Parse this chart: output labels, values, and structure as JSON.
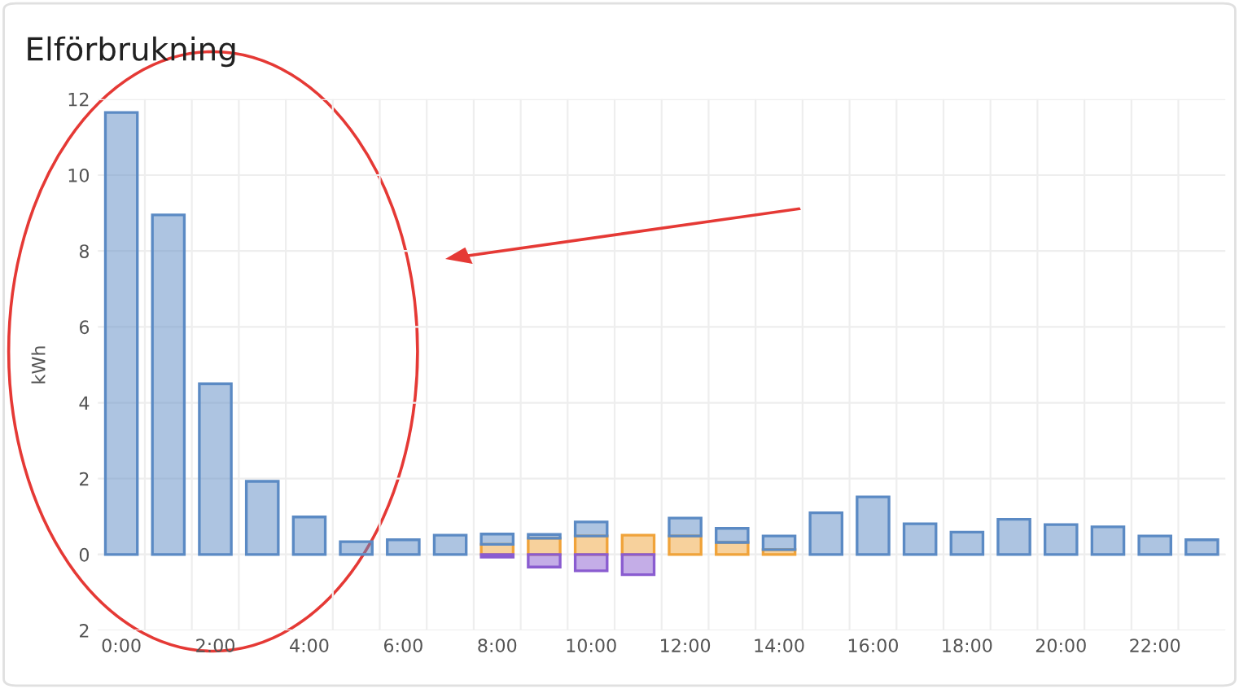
{
  "chart_data": {
    "type": "bar",
    "title": "Elförbrukning",
    "ylabel": "kWh",
    "stacked": true,
    "grid": true,
    "legend": false,
    "categories": [
      "0:00",
      null,
      "2:00",
      null,
      "4:00",
      null,
      "6:00",
      null,
      "8:00",
      null,
      "10:00",
      null,
      "12:00",
      null,
      "14:00",
      null,
      "16:00",
      null,
      "18:00",
      null,
      "20:00",
      null,
      "22:00",
      null
    ],
    "series": [
      {
        "color": "#f0a33a",
        "values": [
          null,
          null,
          null,
          null,
          null,
          null,
          null,
          null,
          0.27,
          0.43,
          0.49,
          0.51,
          0.49,
          0.32,
          0.13,
          null,
          null,
          null,
          null,
          null,
          null,
          null,
          null,
          null
        ]
      },
      {
        "color": "#5b8ac4",
        "values": [
          11.65,
          8.95,
          4.5,
          1.93,
          0.99,
          0.34,
          0.39,
          0.51,
          0.27,
          0.1,
          0.37,
          null,
          0.47,
          0.37,
          0.36,
          1.1,
          1.52,
          0.81,
          0.59,
          0.93,
          0.79,
          0.73,
          0.49,
          0.39
        ]
      },
      {
        "color": "#8a5cd0",
        "values": [
          null,
          null,
          null,
          null,
          null,
          null,
          null,
          null,
          -0.07,
          -0.33,
          -0.43,
          -0.53,
          null,
          null,
          null,
          null,
          null,
          null,
          null,
          null,
          null,
          null,
          null,
          null
        ]
      }
    ],
    "ylim": [
      -2,
      12
    ],
    "yticks": [
      {
        "value": -2,
        "label": "2"
      },
      0,
      2,
      4,
      6,
      8,
      10,
      12
    ]
  }
}
